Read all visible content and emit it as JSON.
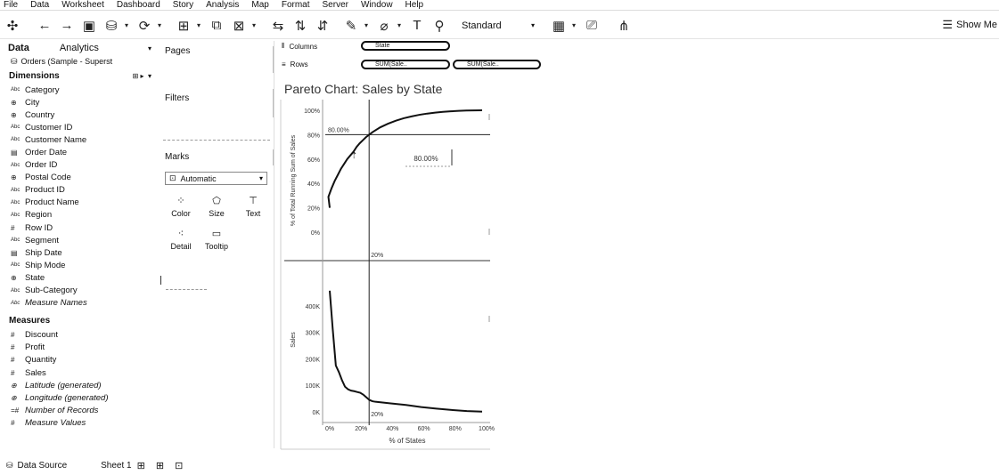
{
  "menu": [
    "File",
    "Data",
    "Worksheet",
    "Dashboard",
    "Story",
    "Analysis",
    "Map",
    "Format",
    "Server",
    "Window",
    "Help"
  ],
  "toolbar": {
    "fit_value": "Standard",
    "show_me_label": "Show Me"
  },
  "data_pane": {
    "tab_data": "Data",
    "tab_analytics": "Analytics",
    "datasource": "Orders (Sample - Superst",
    "dimensions_header": "Dimensions",
    "dimensions": [
      {
        "icon": "Abc",
        "label": "Category",
        "italic": false
      },
      {
        "icon": "globe",
        "label": "City",
        "italic": false
      },
      {
        "icon": "globe",
        "label": "Country",
        "italic": false
      },
      {
        "icon": "Abc",
        "label": "Customer ID",
        "italic": false
      },
      {
        "icon": "Abc",
        "label": "Customer Name",
        "italic": false
      },
      {
        "icon": "calendar",
        "label": "Order Date",
        "italic": false
      },
      {
        "icon": "Abc",
        "label": "Order ID",
        "italic": false
      },
      {
        "icon": "globe",
        "label": "Postal Code",
        "italic": false
      },
      {
        "icon": "Abc",
        "label": "Product ID",
        "italic": false
      },
      {
        "icon": "Abc",
        "label": "Product Name",
        "italic": false
      },
      {
        "icon": "Abc",
        "label": "Region",
        "italic": false
      },
      {
        "icon": "#",
        "label": "Row ID",
        "italic": false
      },
      {
        "icon": "Abc",
        "label": "Segment",
        "italic": false
      },
      {
        "icon": "calendar",
        "label": "Ship Date",
        "italic": false
      },
      {
        "icon": "Abc",
        "label": "Ship Mode",
        "italic": false
      },
      {
        "icon": "globe",
        "label": "State",
        "italic": false
      },
      {
        "icon": "Abc",
        "label": "Sub-Category",
        "italic": false
      },
      {
        "icon": "Abc",
        "label": "Measure Names",
        "italic": true
      }
    ],
    "measures_header": "Measures",
    "measures": [
      {
        "icon": "#",
        "label": "Discount",
        "italic": false
      },
      {
        "icon": "#",
        "label": "Profit",
        "italic": false
      },
      {
        "icon": "#",
        "label": "Quantity",
        "italic": false
      },
      {
        "icon": "#",
        "label": "Sales",
        "italic": false
      },
      {
        "icon": "globe",
        "label": "Latitude (generated)",
        "italic": true
      },
      {
        "icon": "globe",
        "label": "Longitude (generated)",
        "italic": true
      },
      {
        "icon": "=#",
        "label": "Number of Records",
        "italic": true
      },
      {
        "icon": "#",
        "label": "Measure Values",
        "italic": true
      }
    ]
  },
  "cards": {
    "pages": "Pages",
    "filters": "Filters",
    "marks": "Marks",
    "marks_type": "Automatic",
    "color": "Color",
    "size": "Size",
    "text": "Text",
    "detail": "Detail",
    "tooltip": "Tooltip"
  },
  "shelves": {
    "columns_label": "Columns",
    "rows_label": "Rows",
    "columns_pills": [
      "State"
    ],
    "rows_pills": [
      "SUM(Sale..",
      "SUM(Sale.."
    ]
  },
  "view": {
    "title": "Pareto Chart: Sales by State"
  },
  "chart_data": {
    "type": "line",
    "title": "Pareto Chart: Sales by State",
    "xlabel": "% of States",
    "x_ticks": [
      "0%",
      "20%",
      "40%",
      "60%",
      "80%",
      "100%"
    ],
    "xlim": [
      0,
      100
    ],
    "series": [
      {
        "name": "% of Total Running Sum of Sales",
        "x": [
          0,
          2,
          4,
          6,
          8,
          10,
          12,
          14,
          16,
          18,
          20,
          22,
          24,
          26,
          28,
          30,
          35,
          40,
          45,
          50,
          55,
          60,
          65,
          70,
          75,
          80,
          85,
          90,
          95,
          100
        ],
        "y": [
          20,
          29,
          36,
          42,
          47,
          52,
          56,
          60,
          63,
          66,
          70,
          73,
          75.5,
          78,
          80,
          82,
          86,
          89,
          91.5,
          93.5,
          95,
          96.3,
          97.3,
          98.1,
          98.7,
          99.2,
          99.5,
          99.8,
          99.9,
          100
        ]
      },
      {
        "name": "Sales",
        "x": [
          0,
          2,
          4,
          6,
          8,
          10,
          12,
          14,
          16,
          18,
          20,
          22,
          24,
          26,
          28,
          30,
          40,
          50,
          60,
          70,
          80,
          90,
          100
        ],
        "y": [
          457000,
          310000,
          175000,
          150000,
          120000,
          95000,
          85000,
          80000,
          78000,
          75000,
          72000,
          65000,
          55000,
          45000,
          40000,
          38000,
          32000,
          26000,
          18000,
          12000,
          7000,
          3000,
          1000
        ]
      }
    ],
    "top_ylabel": "% of Total Running Sum of Sales",
    "top_y_ticks": [
      "0%",
      "20%",
      "40%",
      "60%",
      "80%",
      "100%"
    ],
    "top_ylim": [
      0,
      100
    ],
    "bottom_ylabel": "Sales",
    "bottom_y_ticks": [
      "0K",
      "100K",
      "200K",
      "300K",
      "400K"
    ],
    "bottom_ylim": [
      0,
      480000
    ],
    "reference_lines": {
      "horizontal_value": 80,
      "horizontal_label": "80.00%",
      "vertical_value": 20,
      "vertical_label": "20%",
      "tooltip_label": "80.00%"
    }
  },
  "statusbar": {
    "data_source": "Data Source",
    "sheet": "Sheet 1"
  }
}
